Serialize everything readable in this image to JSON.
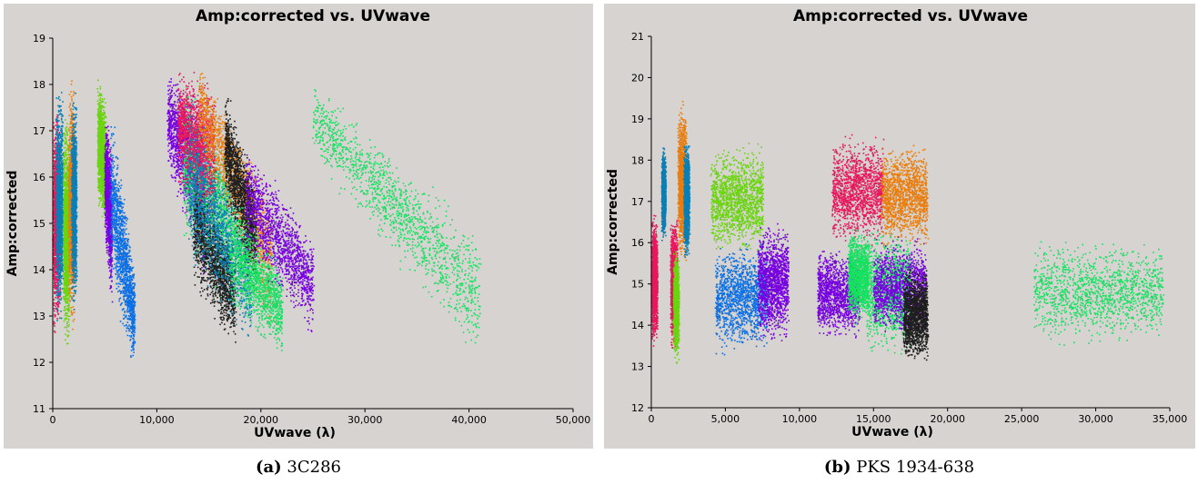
{
  "chart_data": [
    {
      "type": "scatter",
      "title": "Amp:corrected vs. UVwave",
      "xlabel": "UVwave (λ)",
      "ylabel": "Amp:corrected",
      "xlim": [
        0,
        50000
      ],
      "ylim": [
        11,
        19
      ],
      "xticks": [
        0,
        10000,
        20000,
        30000,
        40000,
        50000
      ],
      "xtick_labels": [
        "0",
        "10,000",
        "20,000",
        "30,000",
        "40,000",
        "50,000"
      ],
      "yticks": [
        11,
        12,
        13,
        14,
        15,
        16,
        17,
        18,
        19
      ],
      "ytick_labels": [
        "11",
        "12",
        "13",
        "14",
        "15",
        "16",
        "17",
        "18",
        "19"
      ],
      "grid": false,
      "caption_tag": "(a)",
      "caption_text": "3C286",
      "clusters": [
        {
          "color": "#e8175d",
          "x": [
            0,
            600
          ],
          "y_bottom": [
            12.4,
            12.5
          ],
          "y_top": [
            17.8,
            17.8
          ]
        },
        {
          "color": "#0a7fb5",
          "x": [
            300,
            900
          ],
          "y_bottom": [
            12.8,
            12.8
          ],
          "y_top": [
            18.0,
            18.0
          ]
        },
        {
          "color": "#6ad40f",
          "x": [
            1000,
            1500
          ],
          "y_bottom": [
            12.2,
            12.2
          ],
          "y_top": [
            17.5,
            17.5
          ]
        },
        {
          "color": "#e97d0d",
          "x": [
            1500,
            2000
          ],
          "y_bottom": [
            12.6,
            12.6
          ],
          "y_top": [
            18.3,
            18.3
          ]
        },
        {
          "color": "#0a7fb5",
          "x": [
            1800,
            2200
          ],
          "y_bottom": [
            13.0,
            13.0
          ],
          "y_top": [
            17.9,
            17.9
          ]
        },
        {
          "color": "#6ad40f",
          "x": [
            4300,
            5000
          ],
          "y_bottom": [
            15.3,
            14.8
          ],
          "y_top": [
            18.3,
            17.8
          ]
        },
        {
          "color": "#7700e0",
          "x": [
            5000,
            5600
          ],
          "y_bottom": [
            14.5,
            13.0
          ],
          "y_top": [
            17.6,
            16.8
          ]
        },
        {
          "color": "#0a6fe6",
          "x": [
            5500,
            7800
          ],
          "y_bottom": [
            13.6,
            11.7
          ],
          "y_top": [
            17.8,
            14.2
          ]
        },
        {
          "color": "#7700e0",
          "x": [
            11000,
            14500
          ],
          "y_bottom": [
            16.2,
            13.6
          ],
          "y_top": [
            18.4,
            17.8
          ]
        },
        {
          "color": "#17e060",
          "x": [
            12500,
            17000
          ],
          "y_bottom": [
            14.5,
            12.8
          ],
          "y_top": [
            18.2,
            17.0
          ]
        },
        {
          "color": "#e8175d",
          "x": [
            12000,
            15500
          ],
          "y_bottom": [
            15.8,
            14.5
          ],
          "y_top": [
            18.6,
            18.2
          ]
        },
        {
          "color": "#1e1e1e",
          "x": [
            13500,
            17500
          ],
          "y_bottom": [
            13.5,
            12.2
          ],
          "y_top": [
            16.5,
            14.5
          ]
        },
        {
          "color": "#0a7fb5",
          "x": [
            13000,
            19000
          ],
          "y_bottom": [
            14.0,
            12.2
          ],
          "y_top": [
            18.0,
            15.2
          ]
        },
        {
          "color": "#e97d0d",
          "x": [
            14000,
            21000
          ],
          "y_bottom": [
            16.5,
            12.5
          ],
          "y_top": [
            18.6,
            15.8
          ]
        },
        {
          "color": "#1e1e1e",
          "x": [
            16500,
            19500
          ],
          "y_bottom": [
            15.5,
            13.2
          ],
          "y_top": [
            18.0,
            16.0
          ]
        },
        {
          "color": "#17e060",
          "x": [
            17000,
            22000
          ],
          "y_bottom": [
            13.0,
            12.0
          ],
          "y_top": [
            16.0,
            14.2
          ]
        },
        {
          "color": "#7700e0",
          "x": [
            18500,
            25000
          ],
          "y_bottom": [
            14.2,
            12.5
          ],
          "y_top": [
            17.0,
            14.8
          ]
        },
        {
          "color": "#17e060",
          "x": [
            25000,
            41000
          ],
          "y_bottom": [
            16.3,
            11.8
          ],
          "y_top": [
            18.3,
            15.0
          ]
        }
      ]
    },
    {
      "type": "scatter",
      "title": "Amp:corrected vs. UVwave",
      "xlabel": "UVwave (λ)",
      "ylabel": "Amp:corrected",
      "xlim": [
        0,
        35000
      ],
      "ylim": [
        12,
        21
      ],
      "xticks": [
        0,
        5000,
        10000,
        15000,
        20000,
        25000,
        30000,
        35000
      ],
      "xtick_labels": [
        "0",
        "5,000",
        "10,000",
        "15,000",
        "20,000",
        "25,000",
        "30,000",
        "35,000"
      ],
      "yticks": [
        12,
        13,
        14,
        15,
        16,
        17,
        18,
        19,
        20,
        21
      ],
      "ytick_labels": [
        "12",
        "13",
        "14",
        "15",
        "16",
        "17",
        "18",
        "19",
        "20",
        "21"
      ],
      "grid": false,
      "caption_tag": "(b)",
      "caption_text": "PKS 1934-638",
      "clusters": [
        {
          "color": "#e8175d",
          "x": [
            0,
            350
          ],
          "y_bottom": [
            13.4,
            13.4
          ],
          "y_top": [
            16.8,
            16.8
          ]
        },
        {
          "color": "#0a7fb5",
          "x": [
            700,
            900
          ],
          "y_bottom": [
            16.0,
            16.0
          ],
          "y_top": [
            18.4,
            18.4
          ]
        },
        {
          "color": "#e8175d",
          "x": [
            1300,
            1700
          ],
          "y_bottom": [
            13.2,
            13.2
          ],
          "y_top": [
            16.8,
            16.8
          ]
        },
        {
          "color": "#6ad40f",
          "x": [
            1500,
            1800
          ],
          "y_bottom": [
            13.0,
            13.0
          ],
          "y_top": [
            16.0,
            16.0
          ]
        },
        {
          "color": "#e97d0d",
          "x": [
            1800,
            2300
          ],
          "y_bottom": [
            15.4,
            15.4
          ],
          "y_top": [
            19.5,
            19.5
          ]
        },
        {
          "color": "#0a7fb5",
          "x": [
            2200,
            2500
          ],
          "y_bottom": [
            15.5,
            15.5
          ],
          "y_top": [
            18.6,
            18.6
          ]
        },
        {
          "color": "#6ad40f",
          "x": [
            4000,
            7500
          ],
          "y_bottom": [
            15.6,
            15.6
          ],
          "y_top": [
            18.5,
            18.5
          ]
        },
        {
          "color": "#0a6fe6",
          "x": [
            4300,
            7800
          ],
          "y_bottom": [
            13.2,
            13.2
          ],
          "y_top": [
            16.2,
            16.2
          ]
        },
        {
          "color": "#7700e0",
          "x": [
            7200,
            9200
          ],
          "y_bottom": [
            13.5,
            13.5
          ],
          "y_top": [
            16.6,
            16.6
          ]
        },
        {
          "color": "#7700e0",
          "x": [
            11200,
            14000
          ],
          "y_bottom": [
            13.6,
            13.6
          ],
          "y_top": [
            16.0,
            16.0
          ]
        },
        {
          "color": "#e8175d",
          "x": [
            12200,
            15600
          ],
          "y_bottom": [
            15.8,
            15.8
          ],
          "y_top": [
            18.7,
            18.7
          ]
        },
        {
          "color": "#e97d0d",
          "x": [
            15500,
            18600
          ],
          "y_bottom": [
            15.8,
            15.8
          ],
          "y_top": [
            18.5,
            18.5
          ]
        },
        {
          "color": "#17e060",
          "x": [
            13300,
            14600
          ],
          "y_bottom": [
            14.0,
            14.0
          ],
          "y_top": [
            16.4,
            16.4
          ]
        },
        {
          "color": "#17e060",
          "x": [
            14500,
            17500
          ],
          "y_bottom": [
            13.2,
            13.2
          ],
          "y_top": [
            16.5,
            16.5
          ]
        },
        {
          "color": "#7700e0",
          "x": [
            15000,
            18500
          ],
          "y_bottom": [
            13.6,
            13.6
          ],
          "y_top": [
            16.2,
            16.2
          ]
        },
        {
          "color": "#1e1e1e",
          "x": [
            17000,
            18600
          ],
          "y_bottom": [
            13.0,
            13.0
          ],
          "y_top": [
            15.5,
            15.5
          ]
        },
        {
          "color": "#17e060",
          "x": [
            25800,
            34500
          ],
          "y_bottom": [
            13.4,
            13.4
          ],
          "y_top": [
            16.2,
            16.2
          ]
        }
      ]
    }
  ]
}
